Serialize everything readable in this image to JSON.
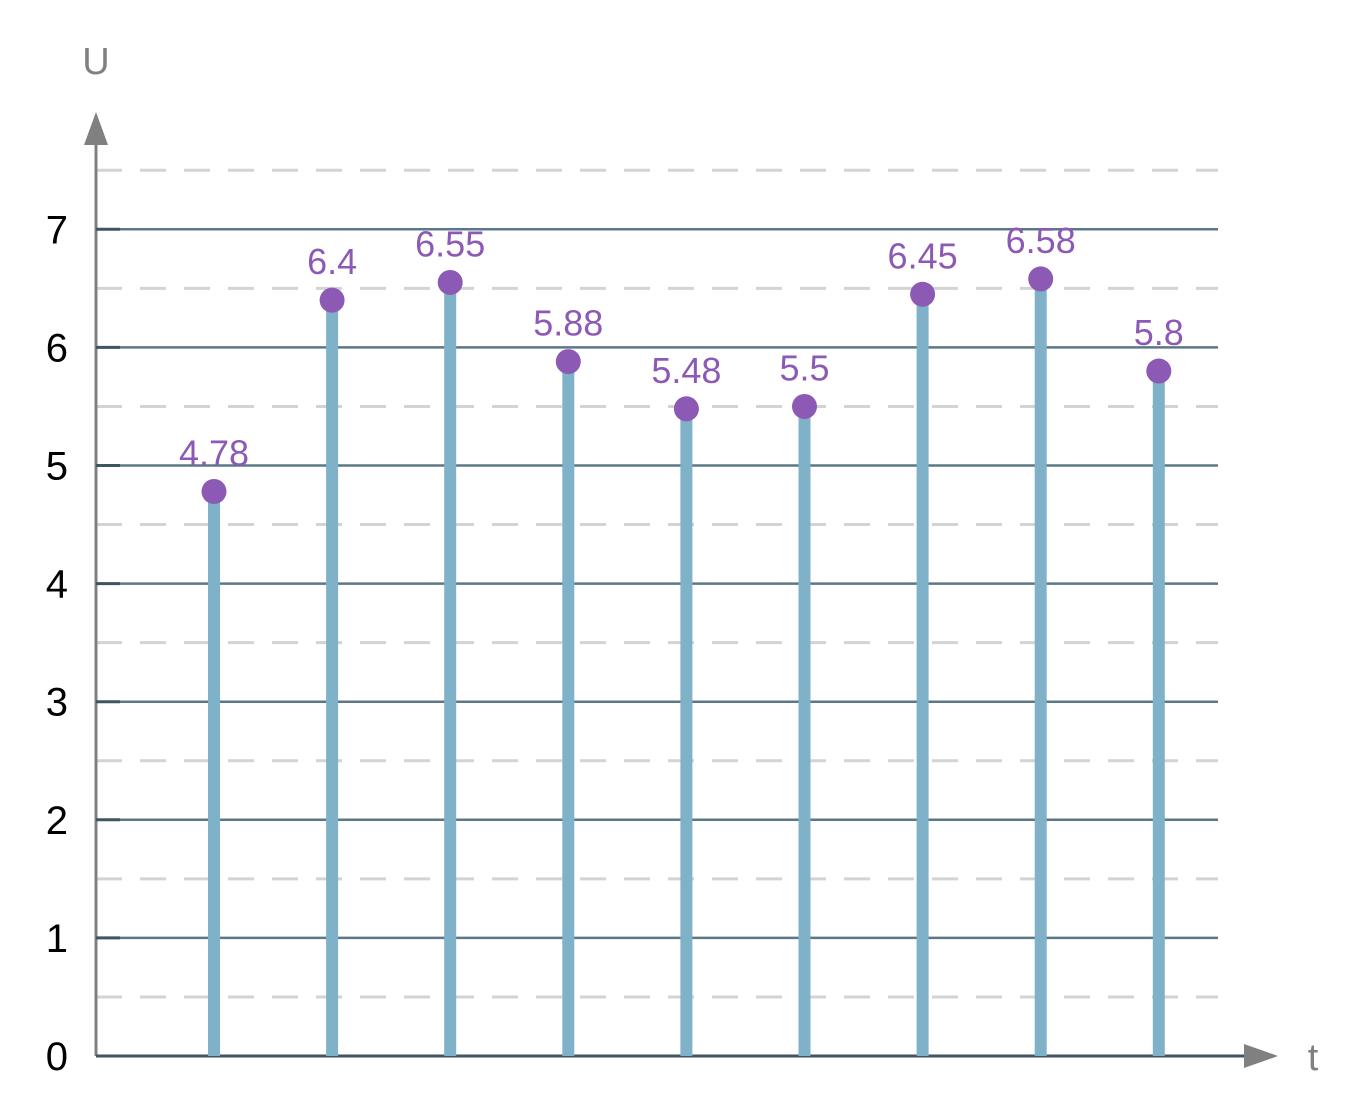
{
  "chart_data": {
    "type": "stem",
    "title": "",
    "xlabel": "t",
    "ylabel": "U",
    "x": [
      1,
      2,
      3,
      4,
      5,
      6,
      7,
      8,
      9
    ],
    "values": [
      4.78,
      6.4,
      6.55,
      5.88,
      5.48,
      5.5,
      6.45,
      6.58,
      5.8
    ],
    "data_labels": [
      "4.78",
      "6.4",
      "6.55",
      "5.88",
      "5.48",
      "5.5",
      "6.45",
      "6.58",
      "5.8"
    ],
    "ylim": [
      0,
      7.5
    ],
    "yticks": [
      0,
      1,
      2,
      3,
      4,
      5,
      6,
      7
    ],
    "ytick_labels": [
      "0",
      "1",
      "2",
      "3",
      "4",
      "5",
      "6",
      "7"
    ],
    "grid": {
      "major": true,
      "minor": true,
      "minor_style": "dashed"
    },
    "legend": "none",
    "colors": {
      "stem": "#7fb2c8",
      "marker": "#8c5ab4",
      "label": "#8c5ab4",
      "major_grid": "#5b7886",
      "minor_grid": "#d3d3d3",
      "axis": "#808080"
    }
  }
}
